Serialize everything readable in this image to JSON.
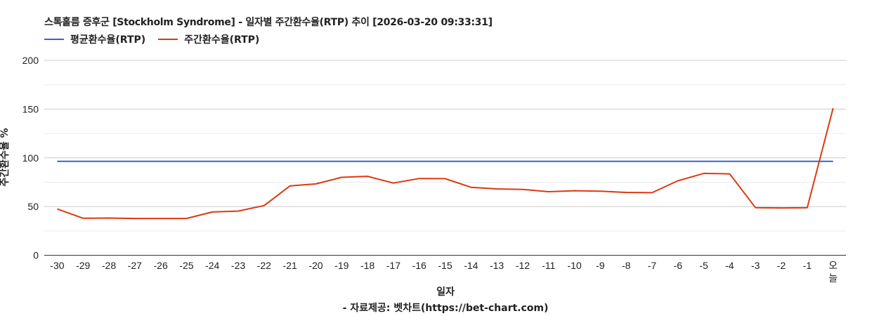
{
  "title": "스톡홀름 증후군 [Stockholm Syndrome] - 일자별 주간환수율(RTP) 추이 [2026-03-20 09:33:31]",
  "legend": [
    {
      "label": "평균환수율(RTP)",
      "color": "#3366cc"
    },
    {
      "label": "주간환수율(RTP)",
      "color": "#dc3912"
    }
  ],
  "y_axis_label": "주간환수율 %",
  "x_axis_label": "일자",
  "source": "- 자료제공: 벳차트(https://bet-chart.com)",
  "chart_data": {
    "type": "line",
    "title": "스톡홀름 증후군 [Stockholm Syndrome] - 일자별 주간환수율(RTP) 추이 [2026-03-20 09:33:31]",
    "xlabel": "일자",
    "ylabel": "주간환수율 %",
    "ylim": [
      0,
      200
    ],
    "yticks": [
      0,
      50,
      100,
      150,
      200
    ],
    "grid": true,
    "legend_position": "top-left",
    "categories": [
      "-30",
      "-29",
      "-28",
      "-27",
      "-26",
      "-25",
      "-24",
      "-23",
      "-22",
      "-21",
      "-20",
      "-19",
      "-18",
      "-17",
      "-16",
      "-15",
      "-14",
      "-13",
      "-12",
      "-11",
      "-10",
      "-9",
      "-8",
      "-7",
      "-6",
      "-5",
      "-4",
      "-3",
      "-2",
      "-1",
      "오늘"
    ],
    "series": [
      {
        "name": "평균환수율(RTP)",
        "color": "#3366cc",
        "values": [
          96.4,
          96.4,
          96.4,
          96.4,
          96.4,
          96.4,
          96.4,
          96.4,
          96.4,
          96.4,
          96.4,
          96.4,
          96.4,
          96.4,
          96.4,
          96.4,
          96.4,
          96.4,
          96.4,
          96.4,
          96.4,
          96.4,
          96.4,
          96.4,
          96.4,
          96.4,
          96.4,
          96.4,
          96.4,
          96.4,
          96.4
        ]
      },
      {
        "name": "주간환수율(RTP)",
        "color": "#dc3912",
        "values": [
          47.5,
          38.0,
          38.2,
          37.8,
          37.8,
          37.8,
          44.4,
          45.3,
          51.0,
          71.2,
          73.2,
          80.0,
          81.0,
          74.1,
          78.8,
          78.6,
          69.8,
          68.1,
          67.6,
          65.2,
          66.2,
          65.7,
          64.5,
          64.2,
          76.5,
          84.0,
          83.5,
          48.8,
          48.6,
          48.8,
          151.0
        ]
      }
    ]
  }
}
